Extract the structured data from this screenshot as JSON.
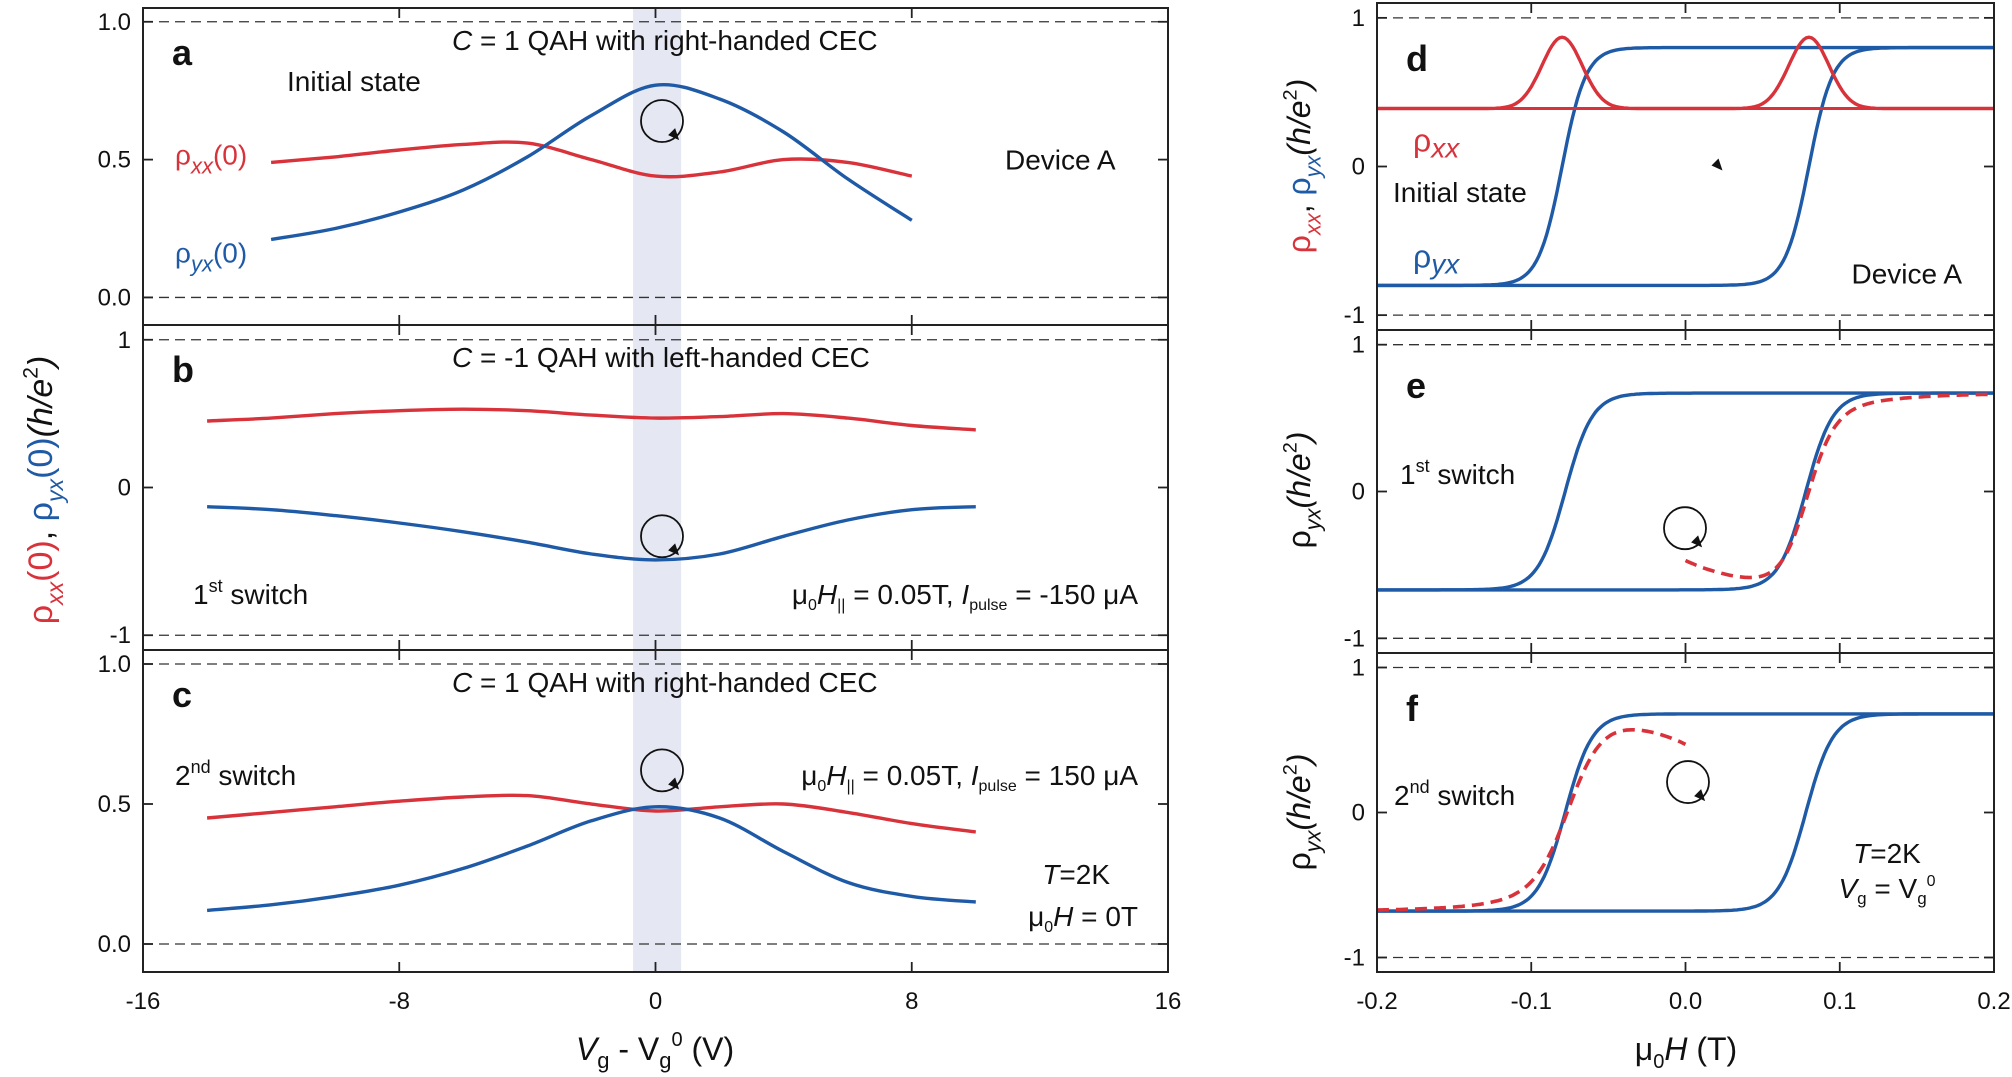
{
  "colors": {
    "red": "#d8323b",
    "blue": "#1f5aa6",
    "shade": "#e5e7f2",
    "frame": "#222222"
  },
  "chart_data": {
    "left": {
      "type": "line",
      "xlabel_main": "V",
      "xlabel_sub1": "g",
      "xlabel_mid": " - V",
      "xlabel_sub2": "g",
      "xlabel_sup": "0",
      "xlabel_unit": " (V)",
      "xlim": [
        -16,
        16
      ],
      "xticks": [
        -16,
        -8,
        0,
        8,
        16
      ],
      "xtick_labels": [
        "-16",
        "-8",
        "0",
        "8",
        "16"
      ],
      "shaded_band": [
        -0.7,
        0.8
      ],
      "ylabel_parts": [
        {
          "t": "ρ",
          "c": "red"
        },
        {
          "t": "xx",
          "c": "red",
          "sub": true,
          "it": true
        },
        {
          "t": "(0)",
          "c": "red"
        },
        {
          "t": ", ",
          "c": "black"
        },
        {
          "t": "ρ",
          "c": "blue"
        },
        {
          "t": "yx",
          "c": "blue",
          "sub": true,
          "it": true
        },
        {
          "t": "(0)",
          "c": "blue"
        },
        {
          "t": "(h/e",
          "c": "black",
          "it": true
        },
        {
          "t": "2",
          "c": "black",
          "sup": true
        },
        {
          "t": ")",
          "c": "black",
          "it": true
        }
      ],
      "panels": [
        {
          "letter": "a",
          "ylim": [
            -0.1,
            1.05
          ],
          "yticks": [
            0.0,
            0.5,
            1.0
          ],
          "ytick_labels": [
            "0.0",
            "0.5",
            "1.0"
          ],
          "ref_lines": [
            0.0,
            1.0
          ],
          "title_c": "C",
          "title_rest": " =  1 QAH with right-handed CEC",
          "annotations": {
            "state": "Initial state",
            "device": "Device A"
          },
          "series_labels": [
            {
              "rho": "ρ",
              "sub": "xx",
              "tail": "(0)",
              "color": "red"
            },
            {
              "rho": "ρ",
              "sub": "yx",
              "tail": "(0)",
              "color": "blue"
            }
          ],
          "series": [
            {
              "name": "rho_xx(0)",
              "color": "red",
              "x": [
                -12,
                -10,
                -8,
                -6,
                -4,
                -2,
                0,
                2,
                4,
                6,
                8
              ],
              "y": [
                0.49,
                0.51,
                0.535,
                0.555,
                0.56,
                0.5,
                0.44,
                0.455,
                0.5,
                0.49,
                0.44
              ]
            },
            {
              "name": "rho_yx(0)",
              "color": "blue",
              "x": [
                -12,
                -10,
                -8,
                -6,
                -4,
                -2,
                0,
                2,
                4,
                6,
                8
              ],
              "y": [
                0.21,
                0.25,
                0.31,
                0.39,
                0.51,
                0.66,
                0.77,
                0.72,
                0.6,
                0.43,
                0.28
              ]
            }
          ]
        },
        {
          "letter": "b",
          "ylim": [
            -1.1,
            1.1
          ],
          "yticks": [
            -1,
            0,
            1
          ],
          "ytick_labels": [
            "-1",
            "0",
            "1"
          ],
          "ref_lines": [
            -1,
            1
          ],
          "title_c": "C",
          "title_rest": " =  -1 QAH with left-handed CEC",
          "annotations": {
            "switch_num": "1",
            "switch_sup": "st",
            "switch_word": " switch",
            "cond_mu": "μ",
            "cond_mu_sub": "0",
            "cond_H": "H",
            "cond_H_sub": "||",
            "cond_mid": " = 0.05T, ",
            "cond_I": "I",
            "cond_I_sub": "pulse",
            "cond_end": " = -150 μA"
          },
          "series": [
            {
              "name": "rho_xx(0)",
              "color": "red",
              "x": [
                -14,
                -12,
                -10,
                -8,
                -6,
                -4,
                -2,
                0,
                2,
                4,
                6,
                8,
                10
              ],
              "y": [
                0.45,
                0.47,
                0.5,
                0.52,
                0.53,
                0.52,
                0.49,
                0.47,
                0.48,
                0.5,
                0.47,
                0.42,
                0.39
              ]
            },
            {
              "name": "rho_yx(0)",
              "color": "blue",
              "x": [
                -14,
                -12,
                -10,
                -8,
                -6,
                -4,
                -2,
                0,
                2,
                4,
                6,
                8,
                10
              ],
              "y": [
                -0.13,
                -0.15,
                -0.19,
                -0.24,
                -0.3,
                -0.37,
                -0.45,
                -0.49,
                -0.45,
                -0.33,
                -0.22,
                -0.15,
                -0.13
              ]
            }
          ]
        },
        {
          "letter": "c",
          "ylim": [
            -0.1,
            1.05
          ],
          "yticks": [
            0.0,
            0.5,
            1.0
          ],
          "ytick_labels": [
            "0.0",
            "0.5",
            "1.0"
          ],
          "ref_lines": [
            0.0,
            1.0
          ],
          "title_c": "C",
          "title_rest": " =  1 QAH with right-handed CEC",
          "annotations": {
            "switch_num": "2",
            "switch_sup": "nd",
            "switch_word": " switch",
            "cond_mu": "μ",
            "cond_mu_sub": "0",
            "cond_H": "H",
            "cond_H_sub": "||",
            "cond_mid": " = 0.05T, ",
            "cond_I": "I",
            "cond_I_sub": "pulse",
            "cond_end": " = 150 μA",
            "temp_T": "T",
            "temp_val": "=2K",
            "field_mu": "μ",
            "field_mu_sub": "0",
            "field_H": "H",
            "field_val": " = 0T"
          },
          "series": [
            {
              "name": "rho_xx(0)",
              "color": "red",
              "x": [
                -14,
                -12,
                -10,
                -8,
                -6,
                -4,
                -2,
                0,
                2,
                4,
                6,
                8,
                10
              ],
              "y": [
                0.45,
                0.47,
                0.49,
                0.51,
                0.525,
                0.53,
                0.5,
                0.475,
                0.49,
                0.5,
                0.47,
                0.43,
                0.4
              ]
            },
            {
              "name": "rho_yx(0)",
              "color": "blue",
              "x": [
                -14,
                -12,
                -10,
                -8,
                -6,
                -4,
                -2,
                0,
                2,
                4,
                6,
                8,
                10
              ],
              "y": [
                0.12,
                0.14,
                0.17,
                0.21,
                0.27,
                0.35,
                0.44,
                0.49,
                0.45,
                0.33,
                0.22,
                0.17,
                0.15
              ]
            }
          ]
        }
      ]
    },
    "right": {
      "type": "line",
      "xlabel_mu": "μ",
      "xlabel_sub": "0",
      "xlabel_H": "H",
      "xlabel_unit": " (T)",
      "xlim": [
        -0.2,
        0.2
      ],
      "xticks": [
        -0.2,
        -0.1,
        0.0,
        0.1,
        0.2
      ],
      "xtick_labels": [
        "-0.2",
        "-0.1",
        "0.0",
        "0.1",
        "0.2"
      ],
      "ylabel_d_parts": [
        {
          "t": "ρ",
          "c": "red"
        },
        {
          "t": "xx",
          "c": "red",
          "sub": true,
          "it": true
        },
        {
          "t": ", ",
          "c": "black"
        },
        {
          "t": "ρ",
          "c": "blue"
        },
        {
          "t": "yx",
          "c": "blue",
          "sub": true,
          "it": true
        },
        {
          "t": "(h/e",
          "c": "black",
          "it": true
        },
        {
          "t": "2",
          "c": "black",
          "sup": true
        },
        {
          "t": ")",
          "c": "black",
          "it": true
        }
      ],
      "ylabel_ef_parts": [
        {
          "t": "ρ",
          "c": "black"
        },
        {
          "t": "yx",
          "c": "black",
          "sub": true,
          "it": true
        },
        {
          "t": "(h/e",
          "c": "black",
          "it": true
        },
        {
          "t": "2",
          "c": "black",
          "sup": true
        },
        {
          "t": ")",
          "c": "black",
          "it": true
        }
      ],
      "panels": [
        {
          "letter": "d",
          "ylim": [
            -1.1,
            1.1
          ],
          "yticks": [
            -1,
            0,
            1
          ],
          "ytick_labels": [
            "-1",
            "0",
            "1"
          ],
          "ref_lines": [
            -1,
            1
          ],
          "annotations": {
            "state": "Initial state",
            "device": "Device A"
          },
          "series_labels": [
            {
              "rho": "ρ",
              "sub": "xx",
              "color": "red"
            },
            {
              "rho": "ρ",
              "sub": "yx",
              "color": "blue"
            }
          ],
          "hysteresis": {
            "sat": 0.8,
            "coercive": 0.08,
            "width": 0.007
          },
          "rho_xx": {
            "base": 0.39,
            "peak": 0.87,
            "center": 0.08,
            "sigma": 0.013
          }
        },
        {
          "letter": "e",
          "ylim": [
            -1.1,
            1.1
          ],
          "yticks": [
            -1,
            0,
            1
          ],
          "ytick_labels": [
            "-1",
            "0",
            "1"
          ],
          "ref_lines": [
            -1,
            1
          ],
          "annotations": {
            "switch_num": "1",
            "switch_sup": "st",
            "switch_word": " switch"
          },
          "hysteresis": {
            "sat": 0.67,
            "coercive": 0.078,
            "width": 0.008
          },
          "partial": {
            "from": 0.0,
            "to": 0.2,
            "start_y": -0.47,
            "branch": "up"
          }
        },
        {
          "letter": "f",
          "ylim": [
            -1.1,
            1.1
          ],
          "yticks": [
            -1,
            0,
            1
          ],
          "ytick_labels": [
            "-1",
            "0",
            "1"
          ],
          "ref_lines": [
            -1,
            1
          ],
          "annotations": {
            "switch_num": "2",
            "switch_sup": "nd",
            "switch_word": " switch",
            "temp_T": "T",
            "temp_val": "=2K",
            "gate_V": "V",
            "gate_sub": "g",
            "gate_mid": " = V",
            "gate_sub2": "g",
            "gate_sup": "0"
          },
          "hysteresis": {
            "sat": 0.68,
            "coercive": 0.078,
            "width": 0.008
          },
          "partial": {
            "from": -0.2,
            "to": 0.0,
            "end_y": 0.47,
            "branch": "down"
          }
        }
      ]
    }
  }
}
